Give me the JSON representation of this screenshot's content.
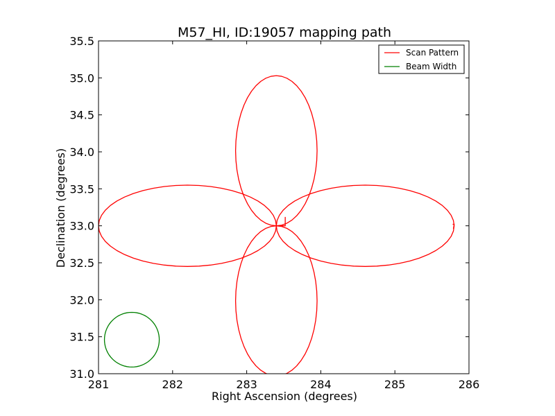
{
  "chart_data": {
    "type": "line",
    "title": "M57_HI, ID:19057 mapping path",
    "xlabel": "Right Ascension (degrees)",
    "ylabel": "Declination (degrees)",
    "xlim": [
      281,
      286
    ],
    "ylim": [
      31.0,
      35.5
    ],
    "xticks": [
      281,
      282,
      283,
      284,
      285,
      286
    ],
    "xtick_labels": [
      "281",
      "282",
      "283",
      "284",
      "285",
      "286"
    ],
    "yticks": [
      31.0,
      31.5,
      32.0,
      32.5,
      33.0,
      33.5,
      34.0,
      34.5,
      35.0,
      35.5
    ],
    "ytick_labels": [
      "31.0",
      "31.5",
      "32.0",
      "32.5",
      "33.0",
      "33.5",
      "34.0",
      "34.5",
      "35.0",
      "35.5"
    ],
    "grid": false,
    "legend_position": "top-right",
    "series": [
      {
        "name": "Scan Pattern",
        "color": "#ff0000",
        "kind": "rose-pattern",
        "center": [
          283.4,
          33.0
        ],
        "petal_reach_ra": 2.4,
        "petal_reach_dec": 2.03,
        "petal_width_ra": 0.55,
        "petal_width_dec": 0.55,
        "tail": [
          [
            283.4,
            33.0
          ],
          [
            283.52,
            33.0
          ],
          [
            283.52,
            33.12
          ]
        ],
        "end_segment": [
          [
            285.78,
            33.02
          ],
          [
            285.8,
            33.02
          ],
          [
            285.79,
            32.96
          ]
        ]
      },
      {
        "name": "Beam Width",
        "color": "#008000",
        "kind": "circle",
        "center": [
          281.45,
          31.46
        ],
        "radius_ra": 0.37,
        "radius_dec": 0.37
      }
    ]
  }
}
